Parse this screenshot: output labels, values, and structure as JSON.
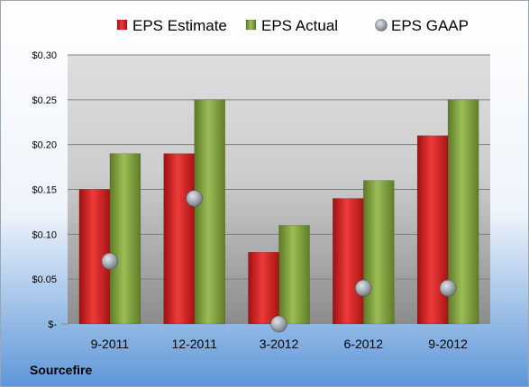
{
  "chart_data": {
    "type": "bar",
    "categories": [
      "9-2011",
      "12-2011",
      "3-2012",
      "6-2012",
      "9-2012"
    ],
    "series": [
      {
        "name": "EPS Estimate",
        "kind": "bar",
        "color": "#cc2020",
        "values": [
          0.15,
          0.19,
          0.08,
          0.14,
          0.21
        ]
      },
      {
        "name": "EPS Actual",
        "kind": "bar",
        "color": "#7a9a3a",
        "values": [
          0.19,
          0.25,
          0.11,
          0.16,
          0.25
        ]
      },
      {
        "name": "EPS GAAP",
        "kind": "marker",
        "color": "#a0a6ae",
        "values": [
          0.07,
          0.14,
          0.0,
          0.04,
          0.04
        ]
      }
    ],
    "yticks": [
      {
        "value": 0.0,
        "label": "$-"
      },
      {
        "value": 0.05,
        "label": "$0.05"
      },
      {
        "value": 0.1,
        "label": "$0.10"
      },
      {
        "value": 0.15,
        "label": "$0.15"
      },
      {
        "value": 0.2,
        "label": "$0.20"
      },
      {
        "value": 0.25,
        "label": "$0.25"
      },
      {
        "value": 0.3,
        "label": "$0.30"
      }
    ],
    "ylim": [
      0,
      0.3
    ],
    "grid": true,
    "legend_position": "top",
    "source": "Sourcefire"
  }
}
